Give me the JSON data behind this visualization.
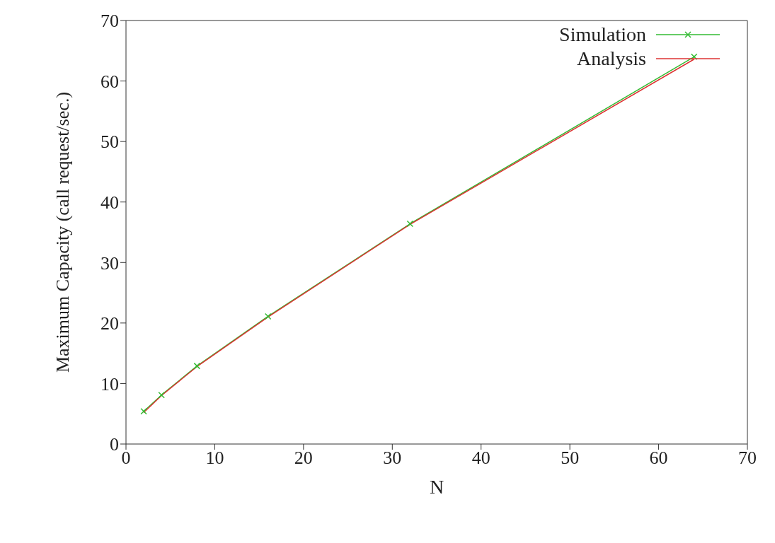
{
  "chart_data": {
    "type": "line",
    "xlabel": "N",
    "ylabel": "Maximum Capacity (call request/sec.)",
    "x": [
      2,
      4,
      8,
      16,
      32,
      64
    ],
    "series": [
      {
        "name": "Simulation",
        "color": "#33bb33",
        "marker": "cross",
        "values": [
          5.4,
          8.1,
          12.9,
          21.1,
          36.4,
          64.0
        ]
      },
      {
        "name": "Analysis",
        "color": "#dd3333",
        "marker": "none",
        "values": [
          5.2,
          8.0,
          12.8,
          21.0,
          36.3,
          63.6
        ]
      }
    ],
    "xlim": [
      0,
      70
    ],
    "xticks": [
      0,
      10,
      20,
      30,
      40,
      50,
      60,
      70
    ],
    "ylim": [
      0,
      70
    ],
    "yticks": [
      0,
      10,
      20,
      30,
      40,
      50,
      60,
      70
    ],
    "grid": false,
    "legend": "top right"
  }
}
